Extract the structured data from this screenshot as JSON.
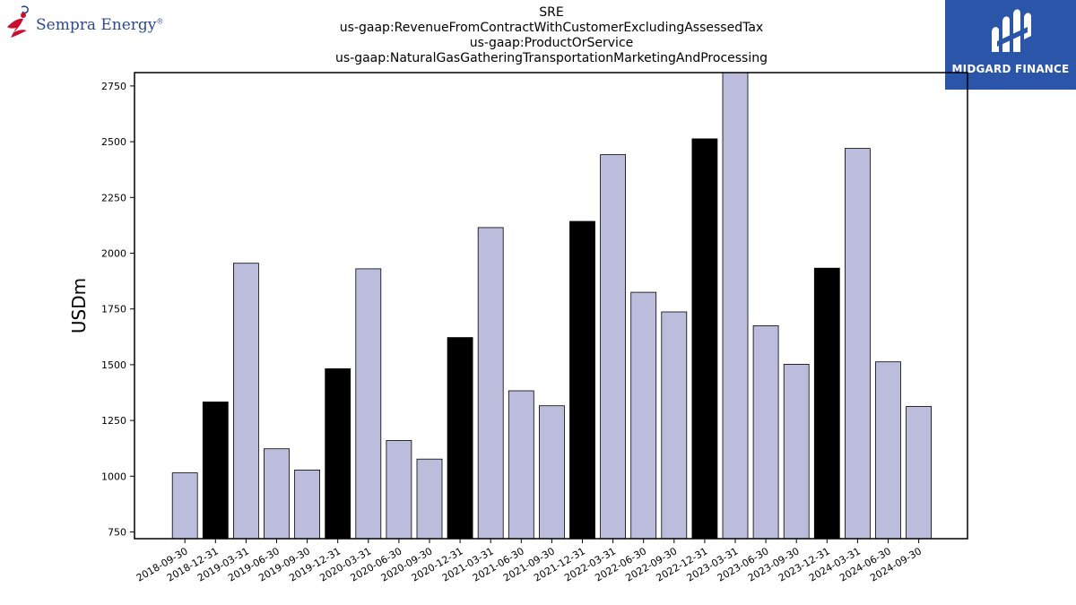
{
  "header": {
    "title_lines": [
      "SRE",
      "us-gaap:RevenueFromContractWithCustomerExcludingAssessedTax",
      "us-gaap:ProductOrService",
      "us-gaap:NaturalGasGatheringTransportationMarketingAndProcessing"
    ]
  },
  "logos": {
    "left": {
      "text": "Sempra Energy",
      "trademark": "®",
      "icon": "sempra-figure-icon"
    },
    "right": {
      "text": "MIDGARD FINANCE",
      "icon": "midgard-emblem-icon",
      "background": "#2a55a8"
    }
  },
  "chart_data": {
    "type": "bar",
    "ylabel": "USDm",
    "xlabel": "",
    "ylim": [
      720,
      2810
    ],
    "yticks": [
      750,
      1000,
      1250,
      1500,
      1750,
      2000,
      2250,
      2500,
      2750
    ],
    "categories": [
      "2018-09-30",
      "2018-12-31",
      "2019-03-31",
      "2019-06-30",
      "2019-09-30",
      "2019-12-31",
      "2020-03-31",
      "2020-06-30",
      "2020-09-30",
      "2020-12-31",
      "2021-03-31",
      "2021-06-30",
      "2021-09-30",
      "2021-12-31",
      "2022-03-31",
      "2022-06-30",
      "2022-09-30",
      "2022-12-31",
      "2023-03-31",
      "2023-06-30",
      "2023-09-30",
      "2023-12-31",
      "2024-03-31",
      "2024-06-30",
      "2024-09-30"
    ],
    "values": [
      1015,
      1333,
      1955,
      1123,
      1028,
      1482,
      1930,
      1160,
      1077,
      1622,
      2115,
      1383,
      1316,
      2143,
      2442,
      1825,
      1737,
      2513,
      2815,
      1675,
      1502,
      1933,
      2470,
      1513,
      1313
    ],
    "highlight": [
      false,
      true,
      false,
      false,
      false,
      true,
      false,
      false,
      false,
      true,
      false,
      false,
      false,
      true,
      false,
      false,
      false,
      true,
      false,
      false,
      false,
      true,
      false,
      false,
      false
    ],
    "colors": {
      "normal": "#bcbddc",
      "highlight": "#000000",
      "edge": "#000000"
    },
    "grid": false
  }
}
